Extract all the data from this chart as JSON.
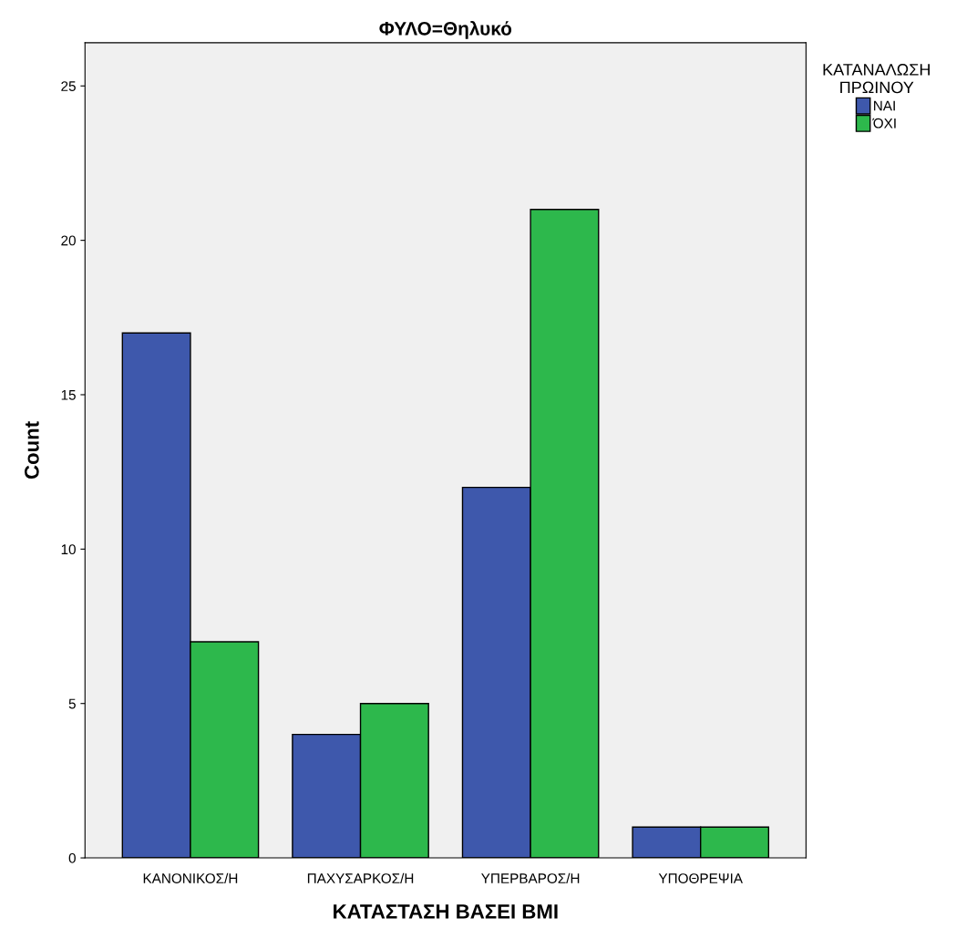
{
  "chart_data": {
    "type": "bar",
    "title": "ΦΥΛΟ=Θηλυκό",
    "xlabel": "ΚΑΤΑΣΤΑΣΗ ΒΑΣΕΙ BMI",
    "ylabel": "Count",
    "legend_title": "ΚΑΤΑΝΑΛΩΣΗ\nΠΡΩΙΝΟΥ",
    "categories": [
      "ΚΑΝΟΝΙΚΟΣ/Η",
      "ΠΑΧΥΣΑΡΚΟΣ/Η",
      "ΥΠΕΡΒΑΡΟΣ/Η",
      "ΥΠΟΘΡΕΨΙΑ"
    ],
    "series": [
      {
        "name": "ΝΑΙ",
        "color": "#3e58ac",
        "values": [
          17,
          4,
          12,
          1
        ]
      },
      {
        "name": "ΌΧΙ",
        "color": "#2db84c",
        "values": [
          7,
          5,
          21,
          1
        ]
      }
    ],
    "ylim": [
      0,
      26.4
    ],
    "yticks": [
      0,
      5,
      10,
      15,
      20,
      25
    ],
    "grid": false,
    "legend": "top right"
  }
}
